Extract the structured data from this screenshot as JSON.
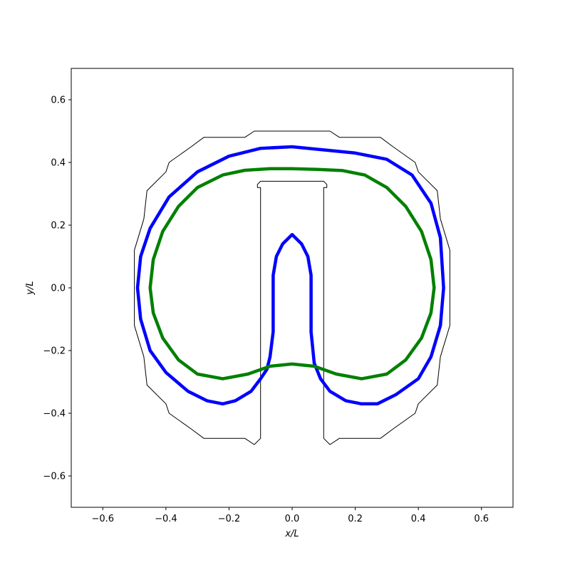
{
  "chart_data": {
    "type": "line",
    "title": "",
    "xlabel": "x/L",
    "ylabel": "y/L",
    "xlim": [
      -0.7,
      0.7
    ],
    "ylim": [
      -0.7,
      0.7
    ],
    "xticks": [
      -0.6,
      -0.4,
      -0.2,
      0.0,
      0.2,
      0.4,
      0.6
    ],
    "yticks": [
      -0.6,
      -0.4,
      -0.2,
      0.0,
      0.2,
      0.4,
      0.6
    ],
    "xtick_labels": [
      "−0.6",
      "−0.4",
      "−0.2",
      "0.0",
      "0.2",
      "0.4",
      "0.6"
    ],
    "ytick_labels": [
      "−0.6",
      "−0.4",
      "−0.2",
      "0.0",
      "0.2",
      "0.4",
      "0.6"
    ],
    "grid": false,
    "legend": "none",
    "series": [
      {
        "color": "#000000",
        "style": "thin",
        "x": [
          -0.12,
          -0.15,
          -0.28,
          -0.32,
          -0.39,
          -0.4,
          -0.46,
          -0.47,
          -0.5,
          -0.5,
          -0.47,
          -0.46,
          -0.4,
          -0.39,
          -0.32,
          -0.28,
          -0.15,
          -0.12,
          0.12,
          0.15,
          0.28,
          0.32,
          0.39,
          0.4,
          0.46,
          0.47,
          0.5,
          0.5,
          0.47,
          0.46,
          0.4,
          0.39,
          0.32,
          0.28,
          0.15,
          0.12,
          0.1,
          0.1,
          0.11,
          0.11,
          0.1,
          -0.1,
          -0.11,
          -0.11,
          -0.1,
          -0.1,
          -0.12
        ],
        "y": [
          -0.5,
          -0.48,
          -0.48,
          -0.45,
          -0.4,
          -0.37,
          -0.31,
          -0.22,
          -0.12,
          0.12,
          0.22,
          0.31,
          0.37,
          0.4,
          0.45,
          0.48,
          0.48,
          0.5,
          0.5,
          0.48,
          0.48,
          0.45,
          0.4,
          0.37,
          0.31,
          0.22,
          0.12,
          -0.12,
          -0.22,
          -0.31,
          -0.37,
          -0.4,
          -0.45,
          -0.48,
          -0.48,
          -0.5,
          -0.48,
          0.32,
          0.32,
          0.33,
          0.34,
          0.34,
          0.33,
          0.32,
          0.32,
          -0.48,
          -0.5
        ]
      },
      {
        "color": "#0000ff",
        "style": "thick",
        "x": [
          -0.08,
          -0.1,
          -0.13,
          -0.18,
          -0.22,
          -0.27,
          -0.33,
          -0.4,
          -0.45,
          -0.48,
          -0.49,
          -0.48,
          -0.45,
          -0.39,
          -0.3,
          -0.2,
          -0.1,
          0.0,
          0.1,
          0.2,
          0.3,
          0.38,
          0.44,
          0.47,
          0.48,
          0.47,
          0.44,
          0.4,
          0.33,
          0.27,
          0.22,
          0.17,
          0.12,
          0.09,
          0.07,
          0.06,
          0.06,
          0.06,
          0.05,
          0.03,
          0.0,
          -0.03,
          -0.05,
          -0.06,
          -0.06,
          -0.06,
          -0.07,
          -0.08
        ],
        "y": [
          -0.26,
          -0.29,
          -0.33,
          -0.36,
          -0.37,
          -0.36,
          -0.33,
          -0.27,
          -0.2,
          -0.1,
          0.0,
          0.1,
          0.19,
          0.29,
          0.37,
          0.42,
          0.445,
          0.45,
          0.44,
          0.43,
          0.41,
          0.36,
          0.27,
          0.16,
          0.0,
          -0.12,
          -0.22,
          -0.29,
          -0.34,
          -0.37,
          -0.37,
          -0.36,
          -0.33,
          -0.29,
          -0.24,
          -0.14,
          -0.04,
          0.04,
          0.1,
          0.14,
          0.17,
          0.14,
          0.1,
          0.04,
          -0.04,
          -0.14,
          -0.22,
          -0.26
        ]
      },
      {
        "color": "#008000",
        "style": "thick",
        "x": [
          -0.45,
          -0.44,
          -0.41,
          -0.36,
          -0.3,
          -0.22,
          -0.15,
          -0.07,
          0.0,
          0.08,
          0.16,
          0.23,
          0.3,
          0.36,
          0.41,
          0.44,
          0.45,
          0.44,
          0.41,
          0.36,
          0.3,
          0.22,
          0.14,
          0.07,
          0.0,
          -0.07,
          -0.14,
          -0.22,
          -0.3,
          -0.36,
          -0.41,
          -0.44,
          -0.45
        ],
        "y": [
          0.0,
          0.09,
          0.18,
          0.26,
          0.32,
          0.36,
          0.375,
          0.38,
          0.38,
          0.378,
          0.374,
          0.36,
          0.32,
          0.26,
          0.18,
          0.09,
          0.0,
          -0.08,
          -0.16,
          -0.23,
          -0.275,
          -0.29,
          -0.275,
          -0.25,
          -0.243,
          -0.25,
          -0.275,
          -0.29,
          -0.275,
          -0.23,
          -0.16,
          -0.08,
          0.0
        ]
      }
    ]
  }
}
